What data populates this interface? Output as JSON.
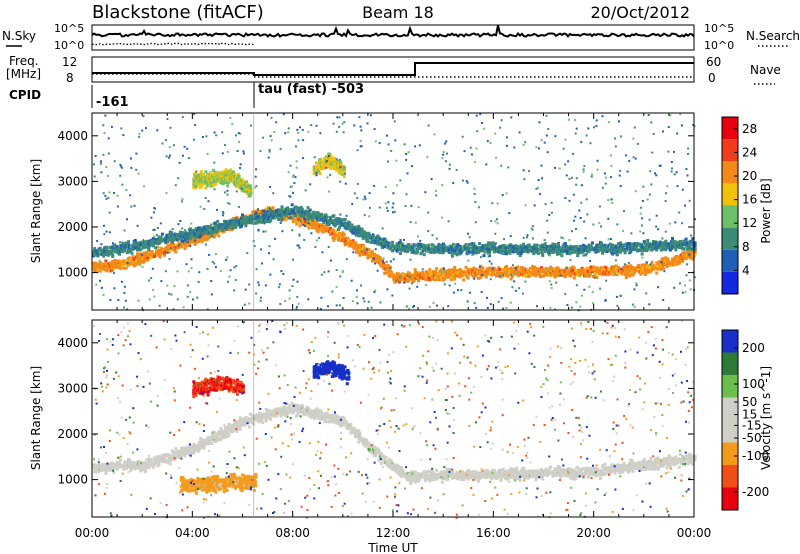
{
  "header": {
    "station": "Blackstone (fitACF)",
    "beam": "Beam 18",
    "date": "20/Oct/2012"
  },
  "strip_labels": {
    "nsky": "N.Sky",
    "nsearch": "N.Search",
    "freq_line1": "Freq.",
    "freq_line2": "[MHz]",
    "nave": "Nave",
    "cpid": "CPID",
    "pow_left_top": "10^5",
    "pow_left_bot": "10^0",
    "pow_right_top": "10^5",
    "pow_right_bot": "10^0",
    "freq_top": "12",
    "freq_bot": "8",
    "nave_top": "60",
    "nave_bot": "0",
    "cpid_1": "-161",
    "cpid_2": "tau (fast) -503"
  },
  "colors": {
    "power": [
      "#1428e0",
      "#1f5fb5",
      "#3c8a78",
      "#6dbf6a",
      "#f2c20a",
      "#f38a18",
      "#f03c1a",
      "#e8000f"
    ],
    "velocity": [
      "#e80010",
      "#f24f18",
      "#f59b1c",
      "#cfcfc8",
      "#cfcfc8",
      "#6ac04a",
      "#2e7a37",
      "#1630c8"
    ]
  },
  "chart_data": [
    {
      "type": "heatmap",
      "name": "power",
      "xlabel": "",
      "ylabel": "Slant Range [km]",
      "x_ticks": [
        "00:00",
        "04:00",
        "08:00",
        "12:00",
        "16:00",
        "20:00",
        "00:00"
      ],
      "xlim_hours": [
        0,
        24
      ],
      "y_ticks": [
        1000,
        2000,
        3000,
        4000
      ],
      "ylim": [
        180,
        4500
      ],
      "colorbar_label": "Power [dB]",
      "colorbar_ticks": [
        4,
        8,
        12,
        16,
        20,
        24,
        28
      ],
      "colorbar_range": [
        0,
        30
      ],
      "series": [
        {
          "t": [
            0.0,
            1.0,
            2.0,
            3.0,
            4.0,
            5.0,
            6.0,
            7.0,
            8.0,
            9.0,
            10.0,
            11.0,
            11.5,
            12.0,
            13.0,
            14.0,
            16.0,
            18.0,
            20.0,
            22.0,
            23.0,
            24.0
          ],
          "r": [
            1150,
            1200,
            1350,
            1550,
            1750,
            1950,
            2200,
            2350,
            2250,
            2050,
            1750,
            1450,
            1250,
            900,
            950,
            1000,
            1050,
            1050,
            1050,
            1100,
            1250,
            1500
          ],
          "dB": 22
        },
        {
          "t": [
            0.0,
            2.0,
            4.0,
            6.0,
            8.0,
            10.0,
            11.0,
            12.0,
            13.0,
            16.0,
            20.0,
            24.0
          ],
          "r": [
            1450,
            1650,
            1900,
            2150,
            2400,
            2100,
            1800,
            1600,
            1550,
            1550,
            1550,
            1650
          ],
          "dB": 9
        },
        {
          "t": [
            4.0,
            4.8,
            5.5,
            6.3
          ],
          "r": [
            3050,
            3100,
            3150,
            2800
          ],
          "dB": 16
        },
        {
          "t": [
            8.8,
            9.4,
            10.0
          ],
          "r": [
            3300,
            3500,
            3250
          ],
          "dB": 17
        }
      ]
    },
    {
      "type": "heatmap",
      "name": "velocity",
      "xlabel": "Time UT",
      "ylabel": "Slant Range [km]",
      "x_ticks": [
        "00:00",
        "04:00",
        "08:00",
        "12:00",
        "16:00",
        "20:00",
        "00:00"
      ],
      "xlim_hours": [
        0,
        24
      ],
      "y_ticks": [
        1000,
        2000,
        3000,
        4000
      ],
      "ylim": [
        180,
        4500
      ],
      "colorbar_label": "Velocity [m s^-1]",
      "colorbar_ticks": [
        -200,
        -100,
        -50,
        -15,
        15,
        50,
        100,
        200
      ],
      "colorbar_range": [
        -250,
        250
      ],
      "series": [
        {
          "t": [
            0.0,
            2.0,
            4.0,
            6.0,
            8.0,
            10.0,
            11.5,
            12.5,
            16.0,
            20.0,
            24.0
          ],
          "r": [
            1300,
            1350,
            1700,
            2300,
            2600,
            2300,
            1500,
            1100,
            1150,
            1200,
            1500
          ],
          "v": 0
        },
        {
          "t": [
            4.0,
            4.6,
            5.2,
            6.0
          ],
          "r": [
            3000,
            3100,
            3150,
            3050
          ],
          "v": -200
        },
        {
          "t": [
            8.8,
            9.5,
            10.2
          ],
          "r": [
            3400,
            3500,
            3300
          ],
          "v": 200
        },
        {
          "t": [
            3.5,
            5.0,
            6.5
          ],
          "r": [
            900,
            950,
            1000
          ],
          "v": -60
        }
      ]
    }
  ]
}
